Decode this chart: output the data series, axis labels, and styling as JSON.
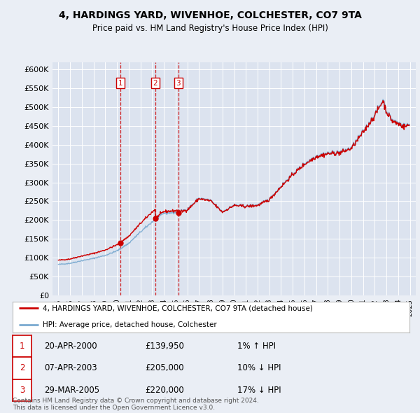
{
  "title": "4, HARDINGS YARD, WIVENHOE, COLCHESTER, CO7 9TA",
  "subtitle": "Price paid vs. HM Land Registry's House Price Index (HPI)",
  "property_label": "4, HARDINGS YARD, WIVENHOE, COLCHESTER, CO7 9TA (detached house)",
  "hpi_label": "HPI: Average price, detached house, Colchester",
  "sale_dates": [
    "20-APR-2000",
    "07-APR-2003",
    "29-MAR-2005"
  ],
  "sale_prices": [
    139950,
    205000,
    220000
  ],
  "sale_hpi_pct": [
    "1% ↑ HPI",
    "10% ↓ HPI",
    "17% ↓ HPI"
  ],
  "sale_years": [
    2000.3,
    2003.27,
    2005.24
  ],
  "ylim": [
    0,
    620000
  ],
  "yticks": [
    0,
    50000,
    100000,
    150000,
    200000,
    250000,
    300000,
    350000,
    400000,
    450000,
    500000,
    550000,
    600000
  ],
  "xlim_left": 1994.5,
  "xlim_right": 2025.5,
  "background_color": "#eaeef5",
  "plot_bg": "#dce3ef",
  "grid_color": "#ffffff",
  "line_color_property": "#cc0000",
  "line_color_hpi": "#7aaad0",
  "sale_marker_color": "#cc0000",
  "footnote": "Contains HM Land Registry data © Crown copyright and database right 2024.\nThis data is licensed under the Open Government Licence v3.0."
}
